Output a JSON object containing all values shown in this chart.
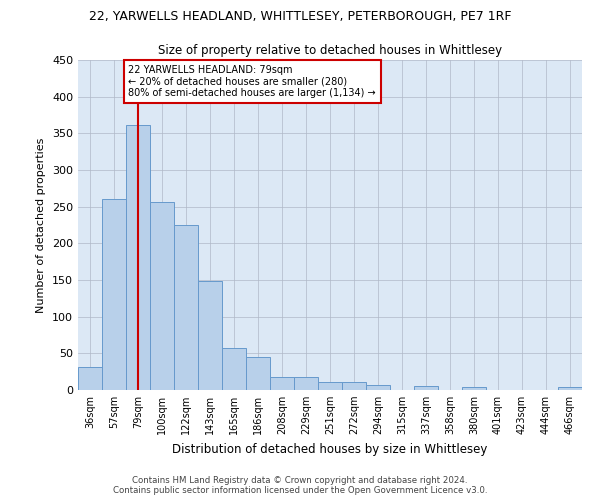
{
  "title": "22, YARWELLS HEADLAND, WHITTLESEY, PETERBOROUGH, PE7 1RF",
  "subtitle": "Size of property relative to detached houses in Whittlesey",
  "xlabel": "Distribution of detached houses by size in Whittlesey",
  "ylabel": "Number of detached properties",
  "categories": [
    "36sqm",
    "57sqm",
    "79sqm",
    "100sqm",
    "122sqm",
    "143sqm",
    "165sqm",
    "186sqm",
    "208sqm",
    "229sqm",
    "251sqm",
    "272sqm",
    "294sqm",
    "315sqm",
    "337sqm",
    "358sqm",
    "380sqm",
    "401sqm",
    "423sqm",
    "444sqm",
    "466sqm"
  ],
  "values": [
    31,
    260,
    362,
    256,
    225,
    148,
    57,
    45,
    18,
    18,
    11,
    11,
    7,
    0,
    6,
    0,
    4,
    0,
    0,
    0,
    4
  ],
  "bar_color": "#b8d0ea",
  "bar_edge_color": "#6699cc",
  "highlight_x": "79sqm",
  "highlight_line_color": "#cc0000",
  "annotation_line1": "22 YARWELLS HEADLAND: 79sqm",
  "annotation_line2": "← 20% of detached houses are smaller (280)",
  "annotation_line3": "80% of semi-detached houses are larger (1,134) →",
  "annotation_box_color": "#cc0000",
  "ylim": [
    0,
    450
  ],
  "yticks": [
    0,
    50,
    100,
    150,
    200,
    250,
    300,
    350,
    400,
    450
  ],
  "footer_line1": "Contains HM Land Registry data © Crown copyright and database right 2024.",
  "footer_line2": "Contains public sector information licensed under the Open Government Licence v3.0.",
  "background_color": "#ffffff",
  "ax_background_color": "#dce8f5",
  "grid_color": "#b0b8c8"
}
